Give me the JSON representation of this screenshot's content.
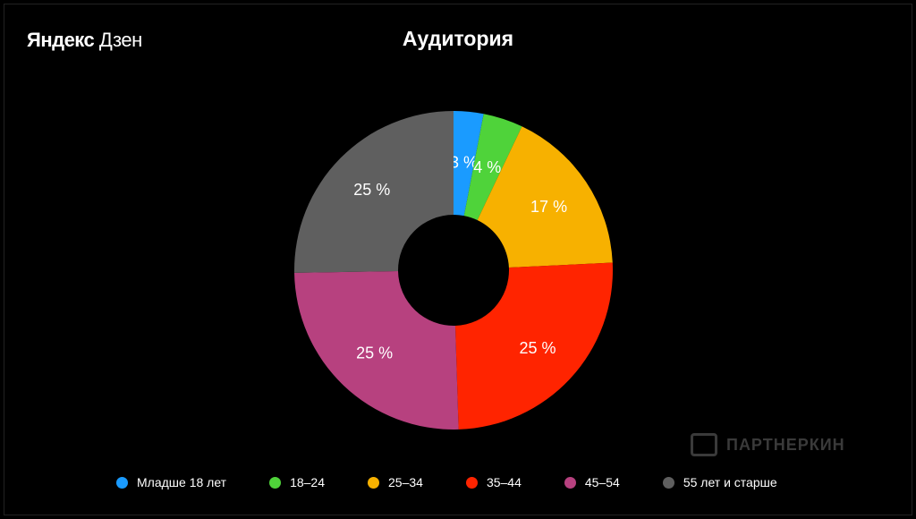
{
  "brand": {
    "part1": "Яндекс",
    "part2": "Дзен"
  },
  "title": "Аудитория",
  "watermark": "ПАРТНЕРКИН",
  "chart_data": {
    "type": "pie",
    "variant": "donut",
    "title": "Аудитория",
    "slices": [
      {
        "label": "Младше 18 лет",
        "value": 3,
        "text": "3 %",
        "color": "#1a9bff"
      },
      {
        "label": "18–24",
        "value": 4,
        "text": "4 %",
        "color": "#4fd33a"
      },
      {
        "label": "25–34",
        "value": 17,
        "text": "17 %",
        "color": "#f7b100"
      },
      {
        "label": "35–44",
        "value": 25,
        "text": "25 %",
        "color": "#ff2400"
      },
      {
        "label": "45–54",
        "value": 25,
        "text": "25 %",
        "color": "#b7417f"
      },
      {
        "label": "55 лет и старше",
        "value": 25,
        "text": "25 %",
        "color": "#5f5f5f"
      }
    ],
    "legend_position": "bottom",
    "start_angle": "top",
    "direction": "clockwise"
  }
}
